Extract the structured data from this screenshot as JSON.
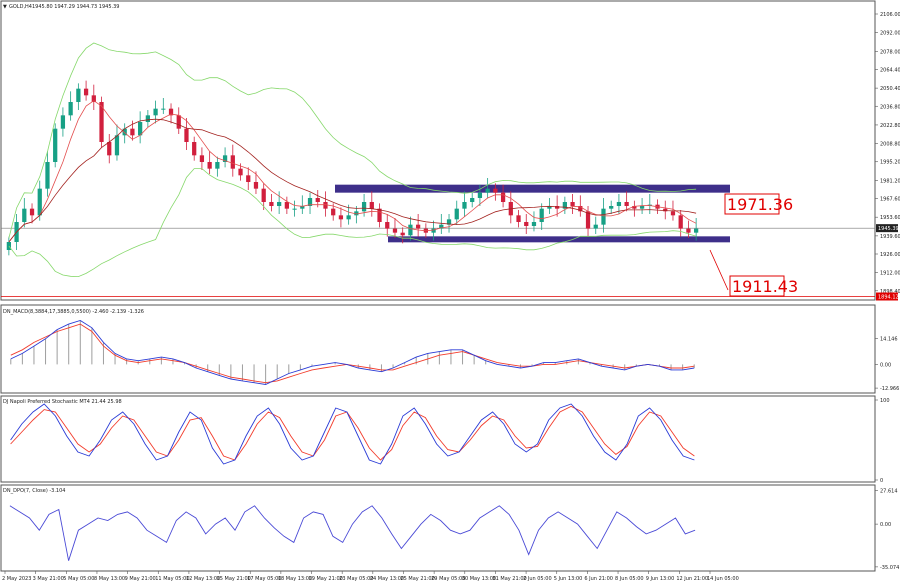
{
  "chart_data": {
    "type": "candlestick",
    "symbol_header": {
      "symbol": "GOLD,H4",
      "ohlc": "1945.80 1947.29 1944.73 1945.39",
      "arrow": "▼"
    },
    "main_axis": {
      "ticks": [
        "2106.00",
        "2092.00",
        "2078.00",
        "2064.40",
        "2050.40",
        "2036.80",
        "2022.80",
        "2008.80",
        "1995.20",
        "1981.20",
        "1967.60",
        "1953.60",
        "1939.60",
        "1926.00",
        "1912.00",
        "1898.40"
      ],
      "range": [
        1893,
        2112
      ],
      "current_price": "1945.39",
      "red_line_price": "1894.12"
    },
    "annotations": {
      "upper_level": "1971.36",
      "lower_level": "1911.43"
    },
    "channel": {
      "upper": 1975,
      "lower": 1937
    },
    "closes": [
      1935,
      1950,
      1960,
      1955,
      1975,
      1995,
      2020,
      2030,
      2040,
      2050,
      2045,
      2040,
      2010,
      2000,
      2015,
      2020,
      2015,
      2025,
      2030,
      2035,
      2035,
      2030,
      2020,
      2010,
      2000,
      1995,
      1990,
      1995,
      2000,
      1990,
      1985,
      1980,
      1975,
      1965,
      1962,
      1965,
      1960,
      1960,
      1962,
      1968,
      1965,
      1960,
      1955,
      1952,
      1955,
      1958,
      1965,
      1960,
      1950,
      1945,
      1942,
      1940,
      1948,
      1945,
      1942,
      1945,
      1948,
      1952,
      1960,
      1965,
      1968,
      1972,
      1975,
      1972,
      1965,
      1955,
      1950,
      1947,
      1950,
      1960,
      1962,
      1960,
      1965,
      1962,
      1958,
      1945,
      1948,
      1960,
      1962,
      1965,
      1962,
      1960,
      1962,
      1963,
      1960,
      1958,
      1955,
      1945,
      1942,
      1945
    ],
    "macd_pane": {
      "label": "DN_MACD(8,3884,17,3885,0,5500) -2.460 -2.139 -1.326",
      "ticks": [
        "14.146",
        "0.00",
        "-12.966"
      ],
      "signal": [
        5,
        8,
        12,
        15,
        18,
        20,
        22,
        18,
        10,
        5,
        2,
        1,
        2,
        3,
        2,
        1,
        -1,
        -3,
        -5,
        -7,
        -8,
        -9,
        -10,
        -9,
        -7,
        -5,
        -3,
        -2,
        -1,
        0,
        -1,
        -2,
        -3,
        -3,
        -1,
        1,
        3,
        5,
        6,
        7,
        5,
        3,
        1,
        0,
        -1,
        -1,
        0,
        0,
        1,
        2,
        1,
        0,
        -1,
        -2,
        -1,
        0,
        -1,
        -2,
        -2,
        -1
      ],
      "main": [
        3,
        6,
        10,
        14,
        19,
        22,
        24,
        20,
        12,
        6,
        3,
        2,
        3,
        4,
        3,
        1,
        -2,
        -4,
        -6,
        -8,
        -9,
        -10,
        -11,
        -8,
        -5,
        -3,
        -1,
        0,
        1,
        0,
        -2,
        -3,
        -4,
        -2,
        1,
        4,
        6,
        7,
        8,
        8,
        5,
        2,
        0,
        -1,
        -2,
        -1,
        1,
        1,
        2,
        3,
        1,
        -1,
        -2,
        -3,
        -1,
        0,
        -1,
        -3,
        -3,
        -2
      ]
    },
    "stoch_pane": {
      "label": "DJ Napoli Preferred Stochastic MT4 21.44 25.98",
      "ticks": [
        "100",
        "0"
      ],
      "k": [
        50,
        70,
        85,
        95,
        80,
        55,
        35,
        30,
        50,
        75,
        85,
        70,
        45,
        25,
        30,
        60,
        85,
        75,
        40,
        20,
        25,
        55,
        80,
        90,
        70,
        40,
        25,
        30,
        60,
        90,
        85,
        55,
        25,
        20,
        45,
        80,
        90,
        70,
        45,
        30,
        35,
        55,
        75,
        85,
        70,
        45,
        35,
        45,
        75,
        90,
        95,
        80,
        55,
        35,
        25,
        45,
        80,
        90,
        75,
        50,
        30,
        25
      ],
      "d": [
        45,
        60,
        75,
        88,
        85,
        65,
        45,
        35,
        45,
        65,
        80,
        75,
        55,
        35,
        30,
        50,
        75,
        78,
        55,
        30,
        25,
        45,
        70,
        85,
        78,
        55,
        35,
        30,
        50,
        80,
        85,
        65,
        40,
        25,
        38,
        68,
        85,
        78,
        55,
        38,
        35,
        50,
        68,
        80,
        75,
        55,
        40,
        42,
        65,
        85,
        92,
        85,
        65,
        45,
        32,
        42,
        68,
        85,
        80,
        60,
        40,
        30
      ]
    },
    "dpo_pane": {
      "label": "DN_DPO(7, Close) -3.104",
      "ticks": [
        "27.614",
        "0.00",
        "-35.074"
      ],
      "values": [
        15,
        10,
        5,
        -5,
        8,
        12,
        -30,
        -5,
        0,
        5,
        3,
        8,
        10,
        5,
        -5,
        -10,
        -15,
        3,
        10,
        5,
        -8,
        0,
        5,
        -5,
        10,
        15,
        5,
        -3,
        -10,
        -15,
        5,
        10,
        8,
        -10,
        -15,
        0,
        10,
        15,
        5,
        -8,
        -20,
        -10,
        0,
        8,
        3,
        -5,
        -8,
        -5,
        5,
        10,
        15,
        8,
        -5,
        -25,
        -5,
        5,
        10,
        5,
        0,
        -10,
        -20,
        -5,
        10,
        5,
        -2,
        -8,
        -5,
        0,
        5,
        -8,
        -5
      ]
    },
    "x_dates": [
      "2 May 2023",
      "3 May 21:00",
      "5 May 05:00",
      "8 May 13:00",
      "9 May 21:00",
      "11 May 05:00",
      "12 May 13:00",
      "15 May 21:00",
      "17 May 05:00",
      "18 May 13:00",
      "19 May 21:00",
      "23 May 05:00",
      "24 May 13:00",
      "25 May 21:00",
      "29 May 05:00",
      "30 May 13:00",
      "31 May 21:00",
      "2 Jun 05:00",
      "5 Jun 13:00",
      "6 Jun 21:00",
      "8 Jun 05:00",
      "9 Jun 13:00",
      "12 Jun 21:00",
      "14 Jun 05:00"
    ],
    "colors": {
      "bull": "#17a085",
      "bear": "#d11f3d",
      "channel": "#3e2f8a",
      "bollinger": "#86d86b",
      "ma_red": "#e34d4d",
      "ma_dark": "#a3221f",
      "macd_main": "#2a3bd6",
      "macd_signal": "#f23c2c",
      "macd_hist": "#9e9e9e",
      "stoch_k": "#2a3bd6",
      "stoch_d": "#f23c2c",
      "dpo": "#4a4ad6",
      "red_price_line": "#e00000"
    }
  }
}
